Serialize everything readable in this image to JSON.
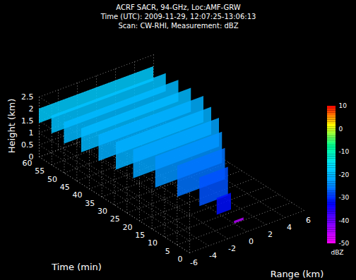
{
  "chart_data": {
    "type": "volume3d",
    "title": "ACRF SACR, 94-GHz, Loc:AMF-GRW",
    "subtitle": [
      "Time (UTC): 2009-11-29, 12:07:25-13:06:13",
      "Scan: CW-RHI, Measurement: dBZ"
    ],
    "x_label": "Time (min)",
    "y_label": "Range (km)",
    "z_label": "Height (km)",
    "xlim": [
      0,
      60
    ],
    "xticks": [
      0,
      5,
      10,
      15,
      20,
      25,
      30,
      35,
      40,
      45,
      50,
      55,
      60
    ],
    "ylim": [
      -6,
      6
    ],
    "yticks": [
      -6,
      -4,
      -2,
      0,
      2,
      4,
      6
    ],
    "zlim": [
      0,
      2.5
    ],
    "zticks": [
      0,
      0.5,
      1,
      1.5,
      2,
      2.5
    ],
    "grid": true,
    "colorbar": {
      "label": "dBZ",
      "lim": [
        -50,
        10
      ],
      "ticks": [
        -50,
        -40,
        -30,
        -20,
        -10,
        0,
        10
      ],
      "colorscale": [
        "#ff00ff",
        "#8000ff",
        "#0000ff",
        "#0090ff",
        "#00e0ff",
        "#00ff90",
        "#ffff00",
        "#ff0000"
      ]
    },
    "cloud": [
      {
        "time": 60,
        "range": [
          -6,
          6
        ],
        "height": [
          1.4,
          2.0
        ],
        "dbz": -18
      },
      {
        "time": 55,
        "range": [
          -6,
          6
        ],
        "height": [
          1.3,
          2.05
        ],
        "dbz": -19
      },
      {
        "time": 50,
        "range": [
          -6,
          6
        ],
        "height": [
          1.2,
          2.1
        ],
        "dbz": -20
      },
      {
        "time": 45,
        "range": [
          -5.5,
          6
        ],
        "height": [
          1.1,
          2.1
        ],
        "dbz": -20
      },
      {
        "time": 40,
        "range": [
          -5,
          6
        ],
        "height": [
          1.0,
          2.1
        ],
        "dbz": -21
      },
      {
        "time": 35,
        "range": [
          -4.5,
          5.5
        ],
        "height": [
          0.9,
          2.05
        ],
        "dbz": -21
      },
      {
        "time": 30,
        "range": [
          -4,
          5
        ],
        "height": [
          0.8,
          2.0
        ],
        "dbz": -22
      },
      {
        "time": 25,
        "range": [
          -3,
          4
        ],
        "height": [
          0.6,
          1.9
        ],
        "dbz": -24
      },
      {
        "time": 20,
        "range": [
          -2,
          3
        ],
        "height": [
          0.4,
          1.7
        ],
        "dbz": -26
      },
      {
        "time": 15,
        "range": [
          -1,
          2
        ],
        "height": [
          0.2,
          1.4
        ],
        "dbz": -28
      },
      {
        "time": 10,
        "range": [
          -0.5,
          1
        ],
        "height": [
          0.1,
          0.8
        ],
        "dbz": -32
      },
      {
        "time": 5,
        "range": [
          0,
          1
        ],
        "height": [
          0,
          0.1
        ],
        "dbz": -45
      }
    ]
  }
}
